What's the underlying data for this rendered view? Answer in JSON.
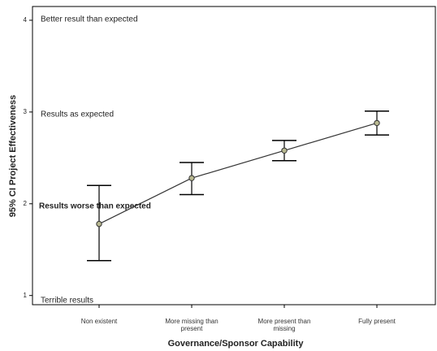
{
  "chart_data": {
    "type": "errorbar",
    "xlabel": "Governance/Sponsor Capability",
    "ylabel": "95% CI Project Effectiveness",
    "categories": [
      "Non existent",
      "More missing than present",
      "More present than missing",
      "Fully present"
    ],
    "values": [
      1.78,
      2.28,
      2.58,
      2.88
    ],
    "ci_lower": [
      1.38,
      2.1,
      2.47,
      2.75
    ],
    "ci_upper": [
      2.2,
      2.45,
      2.69,
      3.01
    ],
    "color": "#000000",
    "marker_color": "#b8b890",
    "ylim": [
      0.9,
      4.15
    ],
    "yticks": [
      1,
      2,
      3,
      4
    ],
    "annotations": [
      "Better result than expected",
      "Results as expected",
      "Results worse than expected",
      "Terrible results"
    ]
  }
}
